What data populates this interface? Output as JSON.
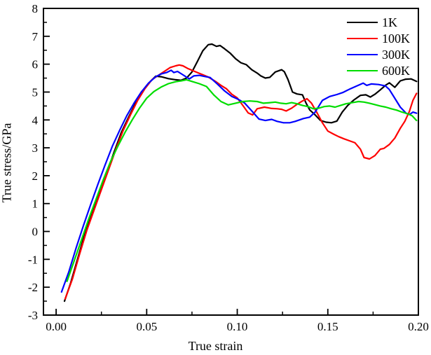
{
  "chart_data": {
    "type": "line",
    "title": "",
    "xlabel": "True strain",
    "ylabel": "True stress/GPa",
    "xlim": [
      -0.007,
      0.2
    ],
    "ylim": [
      -3,
      8
    ],
    "grid": false,
    "legend_position": "top-right-inside",
    "frame_color": "#000000",
    "x_major_ticks": [
      0,
      0.05,
      0.1,
      0.15,
      0.2
    ],
    "x_tick_labels": [
      "0.00",
      "0.05",
      "0.10",
      "0.15",
      "0.20"
    ],
    "x_minor_ticks": [
      0.025,
      0.075,
      0.125,
      0.175
    ],
    "y_major_ticks": [
      -3,
      -2,
      -1,
      0,
      1,
      2,
      3,
      4,
      5,
      6,
      7,
      8
    ],
    "y_tick_labels": [
      "-3",
      "-2",
      "-1",
      "0",
      "1",
      "2",
      "3",
      "4",
      "5",
      "6",
      "7",
      "8"
    ],
    "y_minor_ticks": [
      -2.5,
      -1.5,
      -0.5,
      0.5,
      1.5,
      2.5,
      3.5,
      4.5,
      5.5,
      6.5,
      7.5
    ],
    "series": [
      {
        "name": "1K",
        "color": "#000000",
        "points": [
          [
            0.0046,
            -2.5
          ],
          [
            0.008,
            -1.85
          ],
          [
            0.012,
            -0.95
          ],
          [
            0.016,
            -0.05
          ],
          [
            0.02,
            0.65
          ],
          [
            0.024,
            1.38
          ],
          [
            0.028,
            2.1
          ],
          [
            0.032,
            2.85
          ],
          [
            0.036,
            3.55
          ],
          [
            0.04,
            4.1
          ],
          [
            0.044,
            4.62
          ],
          [
            0.048,
            5.05
          ],
          [
            0.052,
            5.38
          ],
          [
            0.055,
            5.57
          ],
          [
            0.058,
            5.55
          ],
          [
            0.062,
            5.48
          ],
          [
            0.066,
            5.44
          ],
          [
            0.069,
            5.42
          ],
          [
            0.072,
            5.5
          ],
          [
            0.075,
            5.72
          ],
          [
            0.078,
            6.1
          ],
          [
            0.081,
            6.48
          ],
          [
            0.084,
            6.7
          ],
          [
            0.086,
            6.72
          ],
          [
            0.0885,
            6.64
          ],
          [
            0.0905,
            6.67
          ],
          [
            0.093,
            6.55
          ],
          [
            0.096,
            6.4
          ],
          [
            0.099,
            6.2
          ],
          [
            0.102,
            6.05
          ],
          [
            0.105,
            5.98
          ],
          [
            0.108,
            5.8
          ],
          [
            0.111,
            5.68
          ],
          [
            0.113,
            5.58
          ],
          [
            0.1155,
            5.5
          ],
          [
            0.118,
            5.53
          ],
          [
            0.121,
            5.72
          ],
          [
            0.1245,
            5.8
          ],
          [
            0.126,
            5.73
          ],
          [
            0.128,
            5.45
          ],
          [
            0.1305,
            5.0
          ],
          [
            0.133,
            4.93
          ],
          [
            0.136,
            4.9
          ],
          [
            0.138,
            4.6
          ],
          [
            0.14,
            4.36
          ],
          [
            0.143,
            4.18
          ],
          [
            0.146,
            3.98
          ],
          [
            0.149,
            3.92
          ],
          [
            0.152,
            3.9
          ],
          [
            0.155,
            3.96
          ],
          [
            0.158,
            4.28
          ],
          [
            0.161,
            4.52
          ],
          [
            0.1645,
            4.72
          ],
          [
            0.168,
            4.88
          ],
          [
            0.171,
            4.9
          ],
          [
            0.1735,
            4.82
          ],
          [
            0.176,
            4.92
          ],
          [
            0.179,
            5.08
          ],
          [
            0.182,
            5.25
          ],
          [
            0.184,
            5.33
          ],
          [
            0.187,
            5.17
          ],
          [
            0.19,
            5.4
          ],
          [
            0.193,
            5.46
          ],
          [
            0.196,
            5.47
          ],
          [
            0.199,
            5.38
          ]
        ]
      },
      {
        "name": "100K",
        "color": "#ff0000",
        "points": [
          [
            0.005,
            -2.42
          ],
          [
            0.009,
            -1.7
          ],
          [
            0.013,
            -0.8
          ],
          [
            0.017,
            0.05
          ],
          [
            0.021,
            0.78
          ],
          [
            0.025,
            1.5
          ],
          [
            0.029,
            2.22
          ],
          [
            0.033,
            2.95
          ],
          [
            0.037,
            3.62
          ],
          [
            0.041,
            4.18
          ],
          [
            0.045,
            4.7
          ],
          [
            0.049,
            5.12
          ],
          [
            0.053,
            5.45
          ],
          [
            0.0565,
            5.6
          ],
          [
            0.06,
            5.75
          ],
          [
            0.063,
            5.88
          ],
          [
            0.066,
            5.94
          ],
          [
            0.068,
            5.97
          ],
          [
            0.07,
            5.94
          ],
          [
            0.0725,
            5.85
          ],
          [
            0.075,
            5.78
          ],
          [
            0.078,
            5.7
          ],
          [
            0.081,
            5.62
          ],
          [
            0.084,
            5.54
          ],
          [
            0.088,
            5.38
          ],
          [
            0.091,
            5.24
          ],
          [
            0.094,
            5.12
          ],
          [
            0.097,
            4.92
          ],
          [
            0.1,
            4.79
          ],
          [
            0.1033,
            4.5
          ],
          [
            0.106,
            4.25
          ],
          [
            0.1085,
            4.18
          ],
          [
            0.111,
            4.4
          ],
          [
            0.115,
            4.46
          ],
          [
            0.119,
            4.41
          ],
          [
            0.122,
            4.4
          ],
          [
            0.1245,
            4.38
          ],
          [
            0.127,
            4.32
          ],
          [
            0.13,
            4.42
          ],
          [
            0.133,
            4.56
          ],
          [
            0.136,
            4.68
          ],
          [
            0.1385,
            4.76
          ],
          [
            0.141,
            4.6
          ],
          [
            0.144,
            4.26
          ],
          [
            0.147,
            3.9
          ],
          [
            0.15,
            3.6
          ],
          [
            0.1535,
            3.48
          ],
          [
            0.156,
            3.4
          ],
          [
            0.159,
            3.32
          ],
          [
            0.162,
            3.25
          ],
          [
            0.165,
            3.18
          ],
          [
            0.168,
            2.95
          ],
          [
            0.17,
            2.65
          ],
          [
            0.173,
            2.6
          ],
          [
            0.176,
            2.72
          ],
          [
            0.179,
            2.95
          ],
          [
            0.181,
            2.98
          ],
          [
            0.184,
            3.12
          ],
          [
            0.187,
            3.35
          ],
          [
            0.19,
            3.7
          ],
          [
            0.1925,
            3.95
          ],
          [
            0.195,
            4.3
          ],
          [
            0.197,
            4.7
          ],
          [
            0.199,
            4.95
          ]
        ]
      },
      {
        "name": "300K",
        "color": "#0000ff",
        "points": [
          [
            0.003,
            -2.17
          ],
          [
            0.007,
            -1.45
          ],
          [
            0.011,
            -0.6
          ],
          [
            0.015,
            0.2
          ],
          [
            0.019,
            0.95
          ],
          [
            0.023,
            1.68
          ],
          [
            0.027,
            2.38
          ],
          [
            0.031,
            3.05
          ],
          [
            0.035,
            3.62
          ],
          [
            0.039,
            4.15
          ],
          [
            0.043,
            4.6
          ],
          [
            0.047,
            5.0
          ],
          [
            0.051,
            5.32
          ],
          [
            0.055,
            5.55
          ],
          [
            0.058,
            5.65
          ],
          [
            0.061,
            5.7
          ],
          [
            0.0635,
            5.78
          ],
          [
            0.065,
            5.7
          ],
          [
            0.067,
            5.74
          ],
          [
            0.0695,
            5.64
          ],
          [
            0.0735,
            5.47
          ],
          [
            0.076,
            5.58
          ],
          [
            0.079,
            5.6
          ],
          [
            0.082,
            5.56
          ],
          [
            0.085,
            5.52
          ],
          [
            0.089,
            5.29
          ],
          [
            0.093,
            5.04
          ],
          [
            0.097,
            4.84
          ],
          [
            0.1005,
            4.74
          ],
          [
            0.104,
            4.61
          ],
          [
            0.1075,
            4.36
          ],
          [
            0.112,
            4.03
          ],
          [
            0.1155,
            3.98
          ],
          [
            0.119,
            4.02
          ],
          [
            0.122,
            3.95
          ],
          [
            0.1255,
            3.9
          ],
          [
            0.129,
            3.9
          ],
          [
            0.132,
            3.95
          ],
          [
            0.1365,
            4.05
          ],
          [
            0.14,
            4.1
          ],
          [
            0.143,
            4.28
          ],
          [
            0.147,
            4.7
          ],
          [
            0.151,
            4.84
          ],
          [
            0.155,
            4.91
          ],
          [
            0.1585,
            4.99
          ],
          [
            0.1625,
            5.12
          ],
          [
            0.166,
            5.22
          ],
          [
            0.1695,
            5.32
          ],
          [
            0.1715,
            5.24
          ],
          [
            0.174,
            5.29
          ],
          [
            0.178,
            5.27
          ],
          [
            0.1818,
            5.22
          ],
          [
            0.184,
            5.09
          ],
          [
            0.1876,
            4.71
          ],
          [
            0.19,
            4.46
          ],
          [
            0.1934,
            4.23
          ],
          [
            0.1953,
            4.2
          ],
          [
            0.197,
            4.28
          ],
          [
            0.199,
            4.24
          ]
        ]
      },
      {
        "name": "600K",
        "color": "#00dd00",
        "points": [
          [
            0.006,
            -1.79
          ],
          [
            0.01,
            -1.05
          ],
          [
            0.014,
            -0.3
          ],
          [
            0.018,
            0.45
          ],
          [
            0.022,
            1.15
          ],
          [
            0.026,
            1.85
          ],
          [
            0.03,
            2.5
          ],
          [
            0.034,
            3.05
          ],
          [
            0.038,
            3.55
          ],
          [
            0.042,
            4.0
          ],
          [
            0.046,
            4.42
          ],
          [
            0.05,
            4.78
          ],
          [
            0.054,
            5.02
          ],
          [
            0.058,
            5.18
          ],
          [
            0.062,
            5.3
          ],
          [
            0.066,
            5.37
          ],
          [
            0.069,
            5.4
          ],
          [
            0.072,
            5.44
          ],
          [
            0.075,
            5.38
          ],
          [
            0.079,
            5.3
          ],
          [
            0.083,
            5.2
          ],
          [
            0.087,
            4.9
          ],
          [
            0.091,
            4.66
          ],
          [
            0.095,
            4.54
          ],
          [
            0.099,
            4.6
          ],
          [
            0.103,
            4.66
          ],
          [
            0.107,
            4.68
          ],
          [
            0.111,
            4.66
          ],
          [
            0.1145,
            4.6
          ],
          [
            0.118,
            4.62
          ],
          [
            0.121,
            4.64
          ],
          [
            0.124,
            4.6
          ],
          [
            0.127,
            4.58
          ],
          [
            0.13,
            4.62
          ],
          [
            0.133,
            4.58
          ],
          [
            0.136,
            4.52
          ],
          [
            0.139,
            4.48
          ],
          [
            0.142,
            4.4
          ],
          [
            0.145,
            4.42
          ],
          [
            0.148,
            4.48
          ],
          [
            0.151,
            4.5
          ],
          [
            0.154,
            4.46
          ],
          [
            0.157,
            4.52
          ],
          [
            0.16,
            4.58
          ],
          [
            0.1635,
            4.62
          ],
          [
            0.167,
            4.66
          ],
          [
            0.17,
            4.64
          ],
          [
            0.173,
            4.6
          ],
          [
            0.176,
            4.55
          ],
          [
            0.179,
            4.5
          ],
          [
            0.182,
            4.46
          ],
          [
            0.185,
            4.4
          ],
          [
            0.188,
            4.35
          ],
          [
            0.191,
            4.28
          ],
          [
            0.194,
            4.22
          ],
          [
            0.1965,
            4.15
          ],
          [
            0.199,
            3.98
          ]
        ]
      }
    ]
  }
}
